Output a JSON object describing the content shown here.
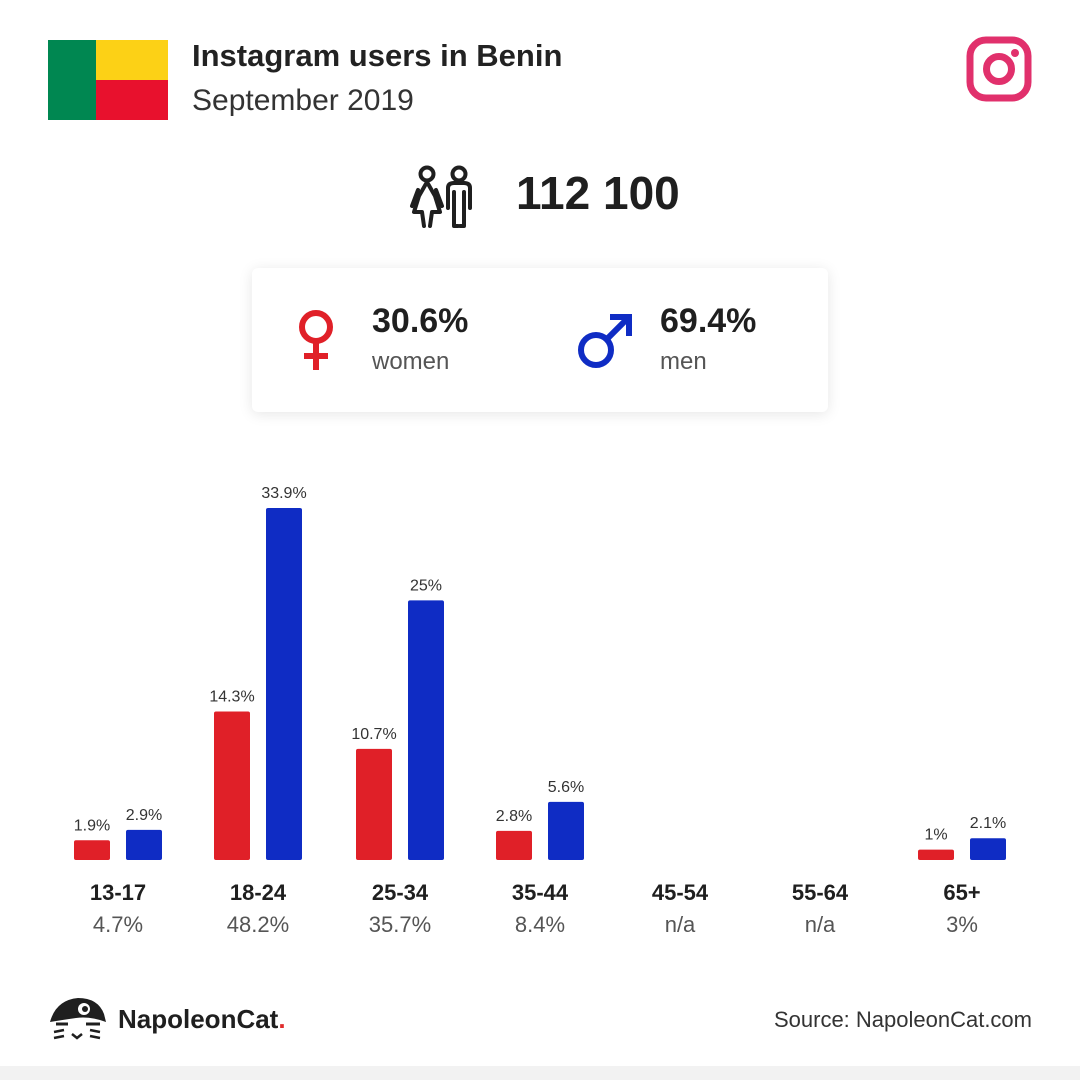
{
  "header": {
    "title": "Instagram users in Benin",
    "subtitle": "September 2019"
  },
  "flag": {
    "green": "#008751",
    "yellow": "#FCD116",
    "red": "#E8112D"
  },
  "total_users": "112 100",
  "gender": {
    "women": {
      "percent": "30.6%",
      "label": "women",
      "color": "#e02028"
    },
    "men": {
      "percent": "69.4%",
      "label": "men",
      "color": "#0f2cc4"
    }
  },
  "chart_data": {
    "type": "bar",
    "categories": [
      "13-17",
      "18-24",
      "25-34",
      "35-44",
      "45-54",
      "55-64",
      "65+"
    ],
    "totals": [
      "4.7%",
      "48.2%",
      "35.7%",
      "8.4%",
      "n/a",
      "n/a",
      "3%"
    ],
    "series": [
      {
        "values": [
          1.9,
          14.3,
          10.7,
          2.8,
          null,
          null,
          1
        ],
        "labels": [
          "1.9%",
          "14.3%",
          "10.7%",
          "2.8%",
          "",
          "",
          "1%"
        ],
        "color": "#e02028"
      },
      {
        "values": [
          2.9,
          33.9,
          25,
          5.6,
          null,
          null,
          2.1
        ],
        "labels": [
          "2.9%",
          "33.9%",
          "25%",
          "5.6%",
          "",
          "",
          "2.1%"
        ],
        "color": "#0f2cc4"
      }
    ],
    "ylim": [
      0,
      33.9
    ],
    "grid": false
  },
  "footer": {
    "brand": "NapoleonCat",
    "brand_dot": ".",
    "source": "Source: NapoleonCat.com"
  }
}
